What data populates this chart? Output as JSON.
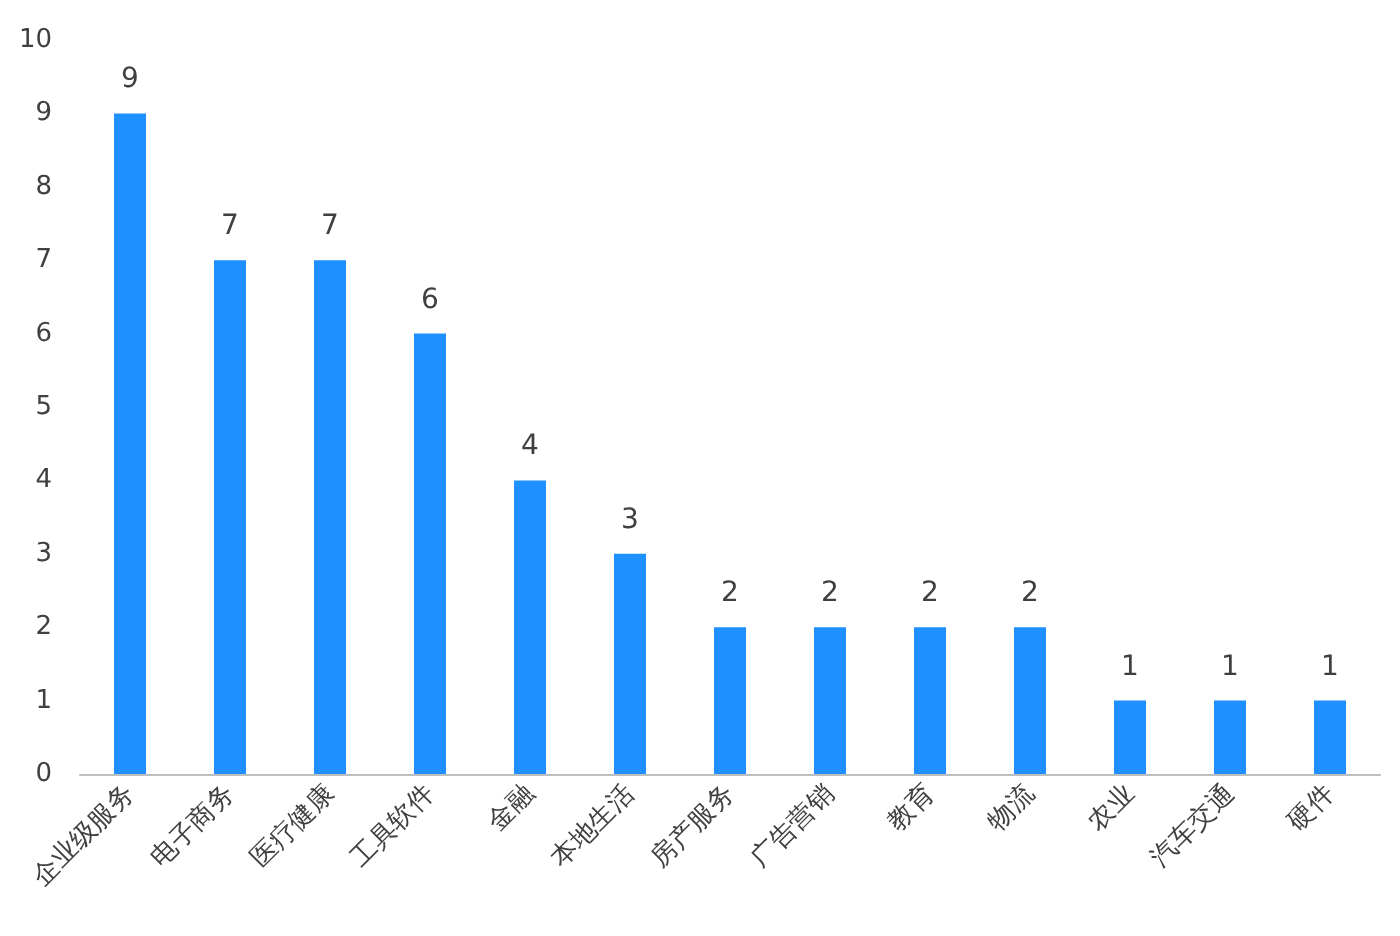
{
  "chart_data": {
    "type": "bar",
    "categories": [
      "企业级服务",
      "电子商务",
      "医疗健康",
      "工具软件",
      "金融",
      "本地生活",
      "房产服务",
      "广告营销",
      "教育",
      "物流",
      "农业",
      "汽车交通",
      "硬件"
    ],
    "values": [
      9,
      7,
      7,
      6,
      4,
      3,
      2,
      2,
      2,
      2,
      1,
      1,
      1
    ],
    "color": "#1e90ff",
    "ylim": [
      0,
      10
    ],
    "yticks": [
      0,
      1,
      2,
      3,
      4,
      5,
      6,
      7,
      8,
      9,
      10
    ],
    "data_labels": true,
    "grid": false
  }
}
